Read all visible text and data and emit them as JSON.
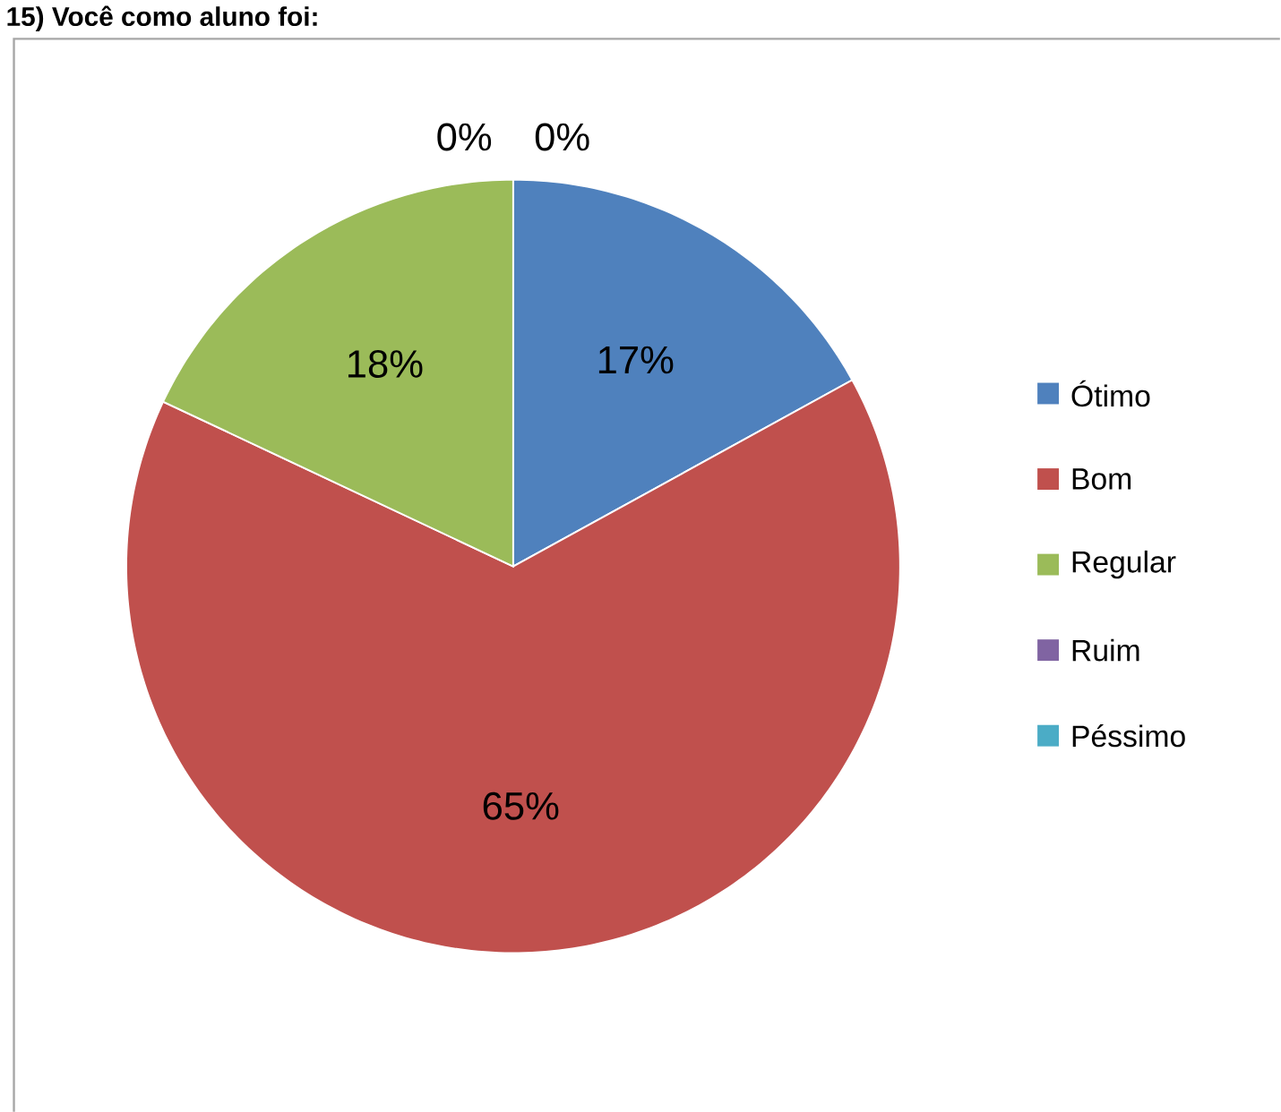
{
  "chart_data": {
    "type": "pie",
    "title": "15) Você como aluno foi:",
    "categories": [
      "Ótimo",
      "Bom",
      "Regular",
      "Ruim",
      "Péssimo"
    ],
    "values": [
      17,
      65,
      18,
      0,
      0
    ],
    "value_labels": [
      "17%",
      "65%",
      "18%",
      "0%",
      "0%"
    ],
    "colors": [
      "#4f81bd",
      "#c0504d",
      "#9bbb59",
      "#8064a2",
      "#4bacc6"
    ],
    "legend": "right"
  }
}
